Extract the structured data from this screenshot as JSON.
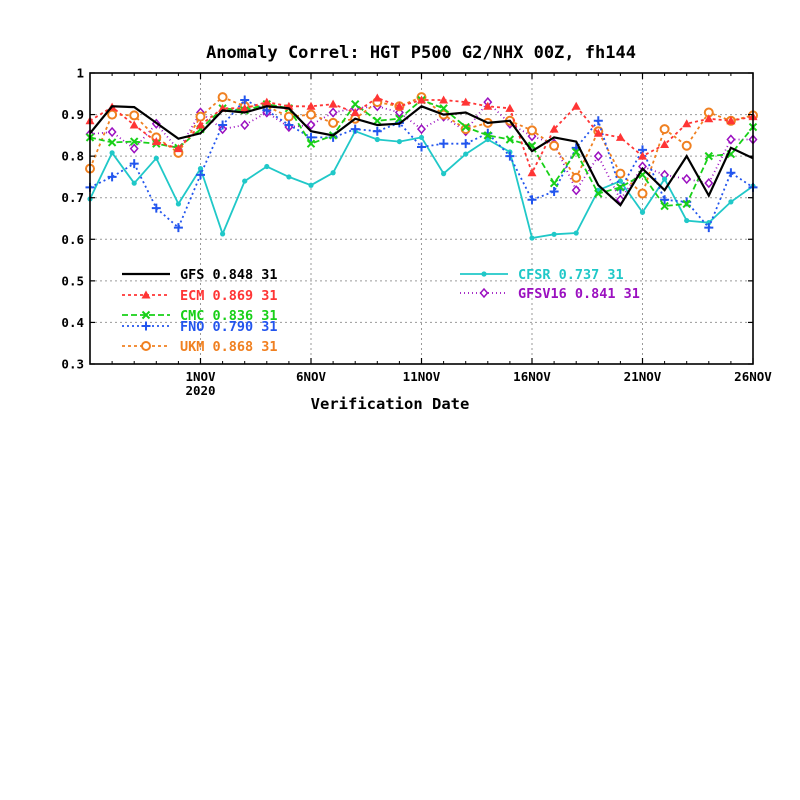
{
  "chart_data": {
    "type": "line",
    "title": "Anomaly Correl: HGT P500 G2/NHX 00Z, fh144",
    "xlabel": "Verification Date",
    "ylabel": "",
    "ylim": [
      0.3,
      1.0
    ],
    "yticks": [
      "0.3",
      "0.4",
      "0.5",
      "0.6",
      "0.7",
      "0.8",
      "0.9",
      "1"
    ],
    "xrange": [
      -4,
      26
    ],
    "xticks": [
      {
        "x": 1,
        "label": "1NOV",
        "sub": "2020"
      },
      {
        "x": 6,
        "label": "6NOV",
        "sub": ""
      },
      {
        "x": 11,
        "label": "11NOV",
        "sub": ""
      },
      {
        "x": 16,
        "label": "16NOV",
        "sub": ""
      },
      {
        "x": 21,
        "label": "21NOV",
        "sub": ""
      },
      {
        "x": 26,
        "label": "26NOV",
        "sub": ""
      }
    ],
    "grid": true,
    "x": [
      -4,
      -3,
      -2,
      -1,
      0,
      1,
      2,
      3,
      4,
      5,
      6,
      7,
      8,
      9,
      10,
      11,
      12,
      13,
      14,
      15,
      16,
      17,
      18,
      19,
      20,
      21,
      22,
      23,
      24,
      25,
      26
    ],
    "series": [
      {
        "name": "GFS",
        "score": "0.848",
        "count": "31",
        "color": "#000000",
        "marker": "none",
        "dash": "",
        "values": [
          0.855,
          0.92,
          0.918,
          0.88,
          0.842,
          0.855,
          0.91,
          0.905,
          0.92,
          0.915,
          0.86,
          0.85,
          0.89,
          0.875,
          0.878,
          0.92,
          0.9,
          0.905,
          0.88,
          0.885,
          0.812,
          0.845,
          0.835,
          0.73,
          0.682,
          0.77,
          0.718,
          0.8,
          0.705,
          0.82,
          0.795
        ]
      },
      {
        "name": "ECM",
        "score": "0.869",
        "count": "31",
        "color": "#ff3535",
        "marker": "triangle",
        "dash": "3,3",
        "values": [
          0.885,
          0.918,
          0.875,
          0.835,
          0.818,
          0.875,
          0.915,
          0.915,
          0.93,
          0.92,
          0.92,
          0.925,
          0.905,
          0.94,
          0.92,
          0.935,
          0.935,
          0.93,
          0.92,
          0.915,
          0.76,
          0.865,
          0.92,
          0.855,
          0.845,
          0.8,
          0.828,
          0.878,
          0.89,
          0.885,
          0.895
        ]
      },
      {
        "name": "CMC",
        "score": "0.836",
        "count": "31",
        "color": "#18d018",
        "marker": "x",
        "dash": "6,3",
        "values": [
          0.845,
          0.833,
          0.835,
          0.83,
          0.82,
          0.865,
          0.915,
          0.91,
          0.925,
          0.915,
          0.83,
          0.85,
          0.925,
          0.885,
          0.89,
          0.935,
          0.915,
          0.87,
          0.85,
          0.84,
          0.825,
          0.735,
          0.81,
          0.71,
          0.725,
          0.755,
          0.68,
          0.685,
          0.8,
          0.805,
          0.87
        ]
      },
      {
        "name": "FNO",
        "score": "0.790",
        "count": "31",
        "color": "#2255ee",
        "marker": "plus",
        "dash": "2,3",
        "values": [
          0.725,
          0.75,
          0.782,
          0.675,
          0.628,
          0.755,
          0.875,
          0.935,
          0.91,
          0.875,
          0.845,
          0.845,
          0.865,
          0.86,
          0.88,
          0.822,
          0.83,
          0.83,
          0.855,
          0.8,
          0.695,
          0.715,
          0.82,
          0.885,
          0.72,
          0.815,
          0.695,
          0.69,
          0.628,
          0.76,
          0.725
        ]
      },
      {
        "name": "UKM",
        "score": "0.868",
        "count": "31",
        "color": "#f08020",
        "marker": "circle",
        "dash": "3,3",
        "values": [
          0.77,
          0.9,
          0.898,
          0.845,
          0.808,
          0.895,
          0.942,
          0.92,
          0.92,
          0.895,
          0.9,
          0.88,
          0.89,
          0.93,
          0.92,
          0.942,
          0.9,
          0.865,
          0.88,
          0.885,
          0.862,
          0.825,
          0.748,
          0.86,
          0.758,
          0.71,
          0.865,
          0.825,
          0.905,
          0.885,
          0.898
        ]
      },
      {
        "name": "CFSR",
        "score": "0.737",
        "count": "31",
        "color": "#20c8c8",
        "marker": "dot",
        "dash": "",
        "values": [
          0.697,
          0.808,
          0.735,
          0.795,
          0.685,
          0.77,
          0.613,
          0.74,
          0.775,
          0.75,
          0.73,
          0.76,
          0.86,
          0.84,
          0.835,
          0.845,
          0.758,
          0.805,
          0.84,
          0.81,
          0.603,
          0.612,
          0.615,
          0.718,
          0.74,
          0.665,
          0.745,
          0.645,
          0.64,
          0.69,
          0.728
        ]
      },
      {
        "name": "GFSV16",
        "score": "0.841",
        "count": "31",
        "color": "#9b10c0",
        "marker": "diamond",
        "dash": "1,3",
        "values": [
          0.853,
          0.858,
          0.818,
          0.878,
          0.815,
          0.905,
          0.865,
          0.875,
          0.905,
          0.87,
          0.875,
          0.905,
          0.915,
          0.92,
          0.905,
          0.865,
          0.895,
          0.86,
          0.93,
          0.878,
          0.848,
          0.83,
          0.718,
          0.8,
          0.695,
          0.775,
          0.755,
          0.745,
          0.735,
          0.84,
          0.84
        ]
      }
    ]
  }
}
